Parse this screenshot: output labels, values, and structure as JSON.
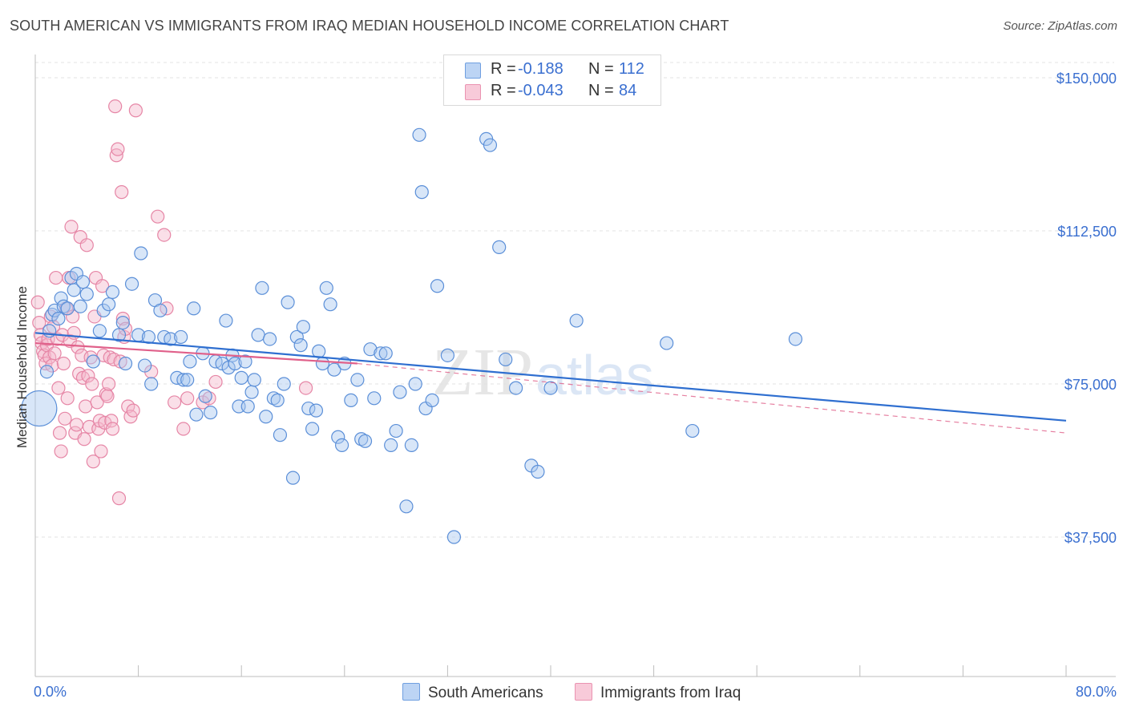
{
  "title": "SOUTH AMERICAN VS IMMIGRANTS FROM IRAQ MEDIAN HOUSEHOLD INCOME CORRELATION CHART",
  "source": "Source: ZipAtlas.com",
  "watermark": "ZIPatlas",
  "legend": {
    "series1": {
      "r_label": "R =",
      "r_value": "-0.188",
      "n_label": "N =",
      "n_value": "112"
    },
    "series2": {
      "r_label": "R =",
      "r_value": "-0.043",
      "n_label": "N =",
      "n_value": "84"
    }
  },
  "bottom_legend": {
    "series1": "South Americans",
    "series2": "Immigrants from Iraq"
  },
  "colors": {
    "blue_fill": "#a9c8f0",
    "blue_stroke": "#5b8fd8",
    "blue_line": "#2f6fd0",
    "pink_fill": "#f5b9cc",
    "pink_stroke": "#e686a6",
    "pink_line": "#e0608a",
    "axis_text": "#3a6fd0",
    "grid": "#e3e3e3"
  },
  "chart_data": {
    "type": "scatter",
    "title": "SOUTH AMERICAN VS IMMIGRANTS FROM IRAQ MEDIAN HOUSEHOLD INCOME CORRELATION CHART",
    "xlabel": "",
    "ylabel": "Median Household Income",
    "xlim": [
      0,
      80
    ],
    "ylim": [
      0,
      155000
    ],
    "x_tick_labels": [
      "0.0%",
      "80.0%"
    ],
    "y_ticks": [
      37500,
      75000,
      112500,
      150000
    ],
    "y_tick_labels": [
      "$37,500",
      "$75,000",
      "$112,500",
      "$150,000"
    ],
    "grid": true,
    "legend_position": "top-center",
    "series": [
      {
        "name": "South Americans",
        "color": "#a9c8f0",
        "trend": {
          "x": [
            0,
            80
          ],
          "y": [
            87500,
            66000
          ]
        },
        "points": [
          [
            0.3,
            69000
          ],
          [
            0.9,
            78000
          ],
          [
            1.1,
            88000
          ],
          [
            1.3,
            92000
          ],
          [
            1.5,
            93000
          ],
          [
            1.8,
            91000
          ],
          [
            2.0,
            96000
          ],
          [
            2.2,
            94000
          ],
          [
            2.5,
            93500
          ],
          [
            2.8,
            101000
          ],
          [
            3.0,
            98000
          ],
          [
            3.2,
            102000
          ],
          [
            3.5,
            94000
          ],
          [
            3.7,
            100000
          ],
          [
            4.0,
            97000
          ],
          [
            4.5,
            80500
          ],
          [
            5.0,
            88000
          ],
          [
            5.3,
            93000
          ],
          [
            5.7,
            94500
          ],
          [
            6.0,
            97500
          ],
          [
            6.5,
            87000
          ],
          [
            6.8,
            90000
          ],
          [
            7.0,
            80000
          ],
          [
            7.5,
            99500
          ],
          [
            8.0,
            87000
          ],
          [
            8.2,
            107000
          ],
          [
            8.5,
            79500
          ],
          [
            8.8,
            86500
          ],
          [
            9.0,
            75000
          ],
          [
            9.3,
            95500
          ],
          [
            9.7,
            93000
          ],
          [
            10.0,
            86500
          ],
          [
            10.5,
            86000
          ],
          [
            11.0,
            76500
          ],
          [
            11.3,
            86500
          ],
          [
            11.5,
            76000
          ],
          [
            11.8,
            76000
          ],
          [
            12.0,
            80500
          ],
          [
            12.3,
            93500
          ],
          [
            12.5,
            67500
          ],
          [
            13.0,
            82500
          ],
          [
            13.2,
            72000
          ],
          [
            13.6,
            68000
          ],
          [
            14.0,
            80500
          ],
          [
            14.5,
            80000
          ],
          [
            14.8,
            90500
          ],
          [
            15.0,
            79000
          ],
          [
            15.3,
            82000
          ],
          [
            15.5,
            80000
          ],
          [
            15.8,
            69500
          ],
          [
            16.0,
            76500
          ],
          [
            16.3,
            80500
          ],
          [
            16.5,
            69500
          ],
          [
            16.8,
            73000
          ],
          [
            17.0,
            76000
          ],
          [
            17.3,
            87000
          ],
          [
            17.6,
            98500
          ],
          [
            17.9,
            67000
          ],
          [
            18.2,
            86000
          ],
          [
            18.5,
            71500
          ],
          [
            18.8,
            71000
          ],
          [
            19.0,
            62500
          ],
          [
            19.3,
            75000
          ],
          [
            19.6,
            95000
          ],
          [
            20.0,
            52000
          ],
          [
            20.3,
            86500
          ],
          [
            20.6,
            84500
          ],
          [
            20.8,
            89000
          ],
          [
            21.2,
            69000
          ],
          [
            21.5,
            64000
          ],
          [
            21.8,
            68500
          ],
          [
            22.0,
            83000
          ],
          [
            22.3,
            80000
          ],
          [
            22.6,
            98500
          ],
          [
            22.9,
            94500
          ],
          [
            23.2,
            78500
          ],
          [
            23.5,
            62000
          ],
          [
            23.8,
            60000
          ],
          [
            24.0,
            80000
          ],
          [
            24.5,
            71000
          ],
          [
            25.0,
            76000
          ],
          [
            25.3,
            61500
          ],
          [
            25.6,
            61000
          ],
          [
            26.0,
            83500
          ],
          [
            26.3,
            71500
          ],
          [
            26.8,
            82500
          ],
          [
            27.2,
            82500
          ],
          [
            27.6,
            60000
          ],
          [
            28.0,
            63500
          ],
          [
            28.3,
            73000
          ],
          [
            28.8,
            45000
          ],
          [
            29.2,
            60000
          ],
          [
            29.5,
            75000
          ],
          [
            29.8,
            136000
          ],
          [
            30.0,
            122000
          ],
          [
            30.3,
            69000
          ],
          [
            30.8,
            71000
          ],
          [
            31.2,
            99000
          ],
          [
            32.0,
            82000
          ],
          [
            32.5,
            37500
          ],
          [
            35.0,
            135000
          ],
          [
            35.3,
            133500
          ],
          [
            36.0,
            108500
          ],
          [
            36.5,
            81000
          ],
          [
            37.3,
            74000
          ],
          [
            38.5,
            55000
          ],
          [
            39.0,
            53500
          ],
          [
            40.0,
            74000
          ],
          [
            42.0,
            90500
          ],
          [
            49.0,
            85000
          ],
          [
            51.0,
            63500
          ],
          [
            59.0,
            86000
          ]
        ]
      },
      {
        "name": "Immigrants from Iraq",
        "color": "#f5b9cc",
        "trend": {
          "x": [
            0,
            25
          ],
          "y": [
            85000,
            80000
          ]
        },
        "points": [
          [
            0.2,
            95000
          ],
          [
            0.3,
            90000
          ],
          [
            0.4,
            87000
          ],
          [
            0.5,
            85000
          ],
          [
            0.6,
            83000
          ],
          [
            0.7,
            82000
          ],
          [
            0.8,
            80000
          ],
          [
            0.9,
            84500
          ],
          [
            1.0,
            86000
          ],
          [
            1.1,
            81500
          ],
          [
            1.2,
            91500
          ],
          [
            1.3,
            79500
          ],
          [
            1.4,
            89000
          ],
          [
            1.5,
            82500
          ],
          [
            1.6,
            101000
          ],
          [
            1.7,
            86000
          ],
          [
            1.8,
            74000
          ],
          [
            1.9,
            63000
          ],
          [
            2.0,
            58500
          ],
          [
            2.1,
            87000
          ],
          [
            2.2,
            80000
          ],
          [
            2.3,
            66500
          ],
          [
            2.4,
            93500
          ],
          [
            2.5,
            71500
          ],
          [
            2.6,
            101000
          ],
          [
            2.7,
            85500
          ],
          [
            2.8,
            113500
          ],
          [
            2.9,
            91500
          ],
          [
            3.0,
            87500
          ],
          [
            3.1,
            63000
          ],
          [
            3.2,
            65000
          ],
          [
            3.3,
            84000
          ],
          [
            3.4,
            77500
          ],
          [
            3.5,
            111000
          ],
          [
            3.6,
            82000
          ],
          [
            3.7,
            76500
          ],
          [
            3.8,
            61500
          ],
          [
            3.9,
            69500
          ],
          [
            4.0,
            109000
          ],
          [
            4.1,
            77000
          ],
          [
            4.2,
            64500
          ],
          [
            4.3,
            81500
          ],
          [
            4.4,
            75000
          ],
          [
            4.5,
            56000
          ],
          [
            4.6,
            91500
          ],
          [
            4.7,
            101000
          ],
          [
            4.8,
            70500
          ],
          [
            4.9,
            64000
          ],
          [
            5.0,
            66000
          ],
          [
            5.1,
            58500
          ],
          [
            5.2,
            99000
          ],
          [
            5.3,
            82000
          ],
          [
            5.4,
            65500
          ],
          [
            5.5,
            72500
          ],
          [
            5.6,
            72000
          ],
          [
            5.7,
            75000
          ],
          [
            5.8,
            81500
          ],
          [
            5.9,
            66000
          ],
          [
            6.0,
            64000
          ],
          [
            6.1,
            81000
          ],
          [
            6.2,
            143000
          ],
          [
            6.3,
            131000
          ],
          [
            6.4,
            132500
          ],
          [
            6.5,
            47000
          ],
          [
            6.6,
            80500
          ],
          [
            6.7,
            122000
          ],
          [
            6.8,
            91000
          ],
          [
            6.9,
            86500
          ],
          [
            7.0,
            88500
          ],
          [
            7.2,
            69500
          ],
          [
            7.4,
            67000
          ],
          [
            7.6,
            68500
          ],
          [
            7.8,
            142000
          ],
          [
            9.0,
            78000
          ],
          [
            9.5,
            116000
          ],
          [
            10.0,
            111500
          ],
          [
            10.2,
            93500
          ],
          [
            10.8,
            70500
          ],
          [
            11.5,
            64000
          ],
          [
            11.8,
            71500
          ],
          [
            13.0,
            70500
          ],
          [
            13.5,
            71500
          ],
          [
            14.0,
            75500
          ],
          [
            21.0,
            74000
          ]
        ]
      }
    ]
  }
}
